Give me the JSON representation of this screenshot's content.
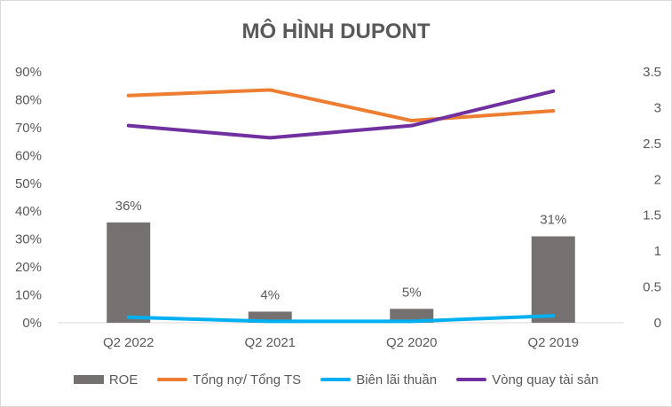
{
  "chart_data": {
    "title": "MÔ HÌNH DUPONT",
    "categories": [
      "Q2 2022",
      "Q2 2021",
      "Q2 2020",
      "Q2 2019"
    ],
    "left_axis": {
      "ticks": [
        "0%",
        "10%",
        "20%",
        "30%",
        "40%",
        "50%",
        "60%",
        "70%",
        "80%",
        "90%"
      ],
      "min": 0,
      "max": 0.9
    },
    "right_axis": {
      "ticks": [
        "0",
        "0.5",
        "1",
        "1.5",
        "2",
        "2.5",
        "3",
        "3.5"
      ],
      "min": 0,
      "max": 3.5
    },
    "series": [
      {
        "name": "ROE",
        "type": "bar",
        "axis": "left",
        "color": "#767171",
        "values": [
          0.36,
          0.04,
          0.05,
          0.31
        ],
        "labels": [
          "36%",
          "4%",
          "5%",
          "31%"
        ]
      },
      {
        "name": "Tổng nợ/ Tổng TS",
        "type": "line",
        "axis": "left",
        "color": "#ed7d31",
        "values": [
          0.815,
          0.835,
          0.725,
          0.76
        ]
      },
      {
        "name": "Biên lãi thuần",
        "type": "line",
        "axis": "left",
        "color": "#00b0f0",
        "values": [
          0.02,
          0.005,
          0.005,
          0.025
        ]
      },
      {
        "name": "Vòng quay tài sản",
        "type": "line",
        "axis": "right",
        "color": "#7030a0",
        "values": [
          2.75,
          2.58,
          2.75,
          3.23
        ]
      }
    ]
  }
}
